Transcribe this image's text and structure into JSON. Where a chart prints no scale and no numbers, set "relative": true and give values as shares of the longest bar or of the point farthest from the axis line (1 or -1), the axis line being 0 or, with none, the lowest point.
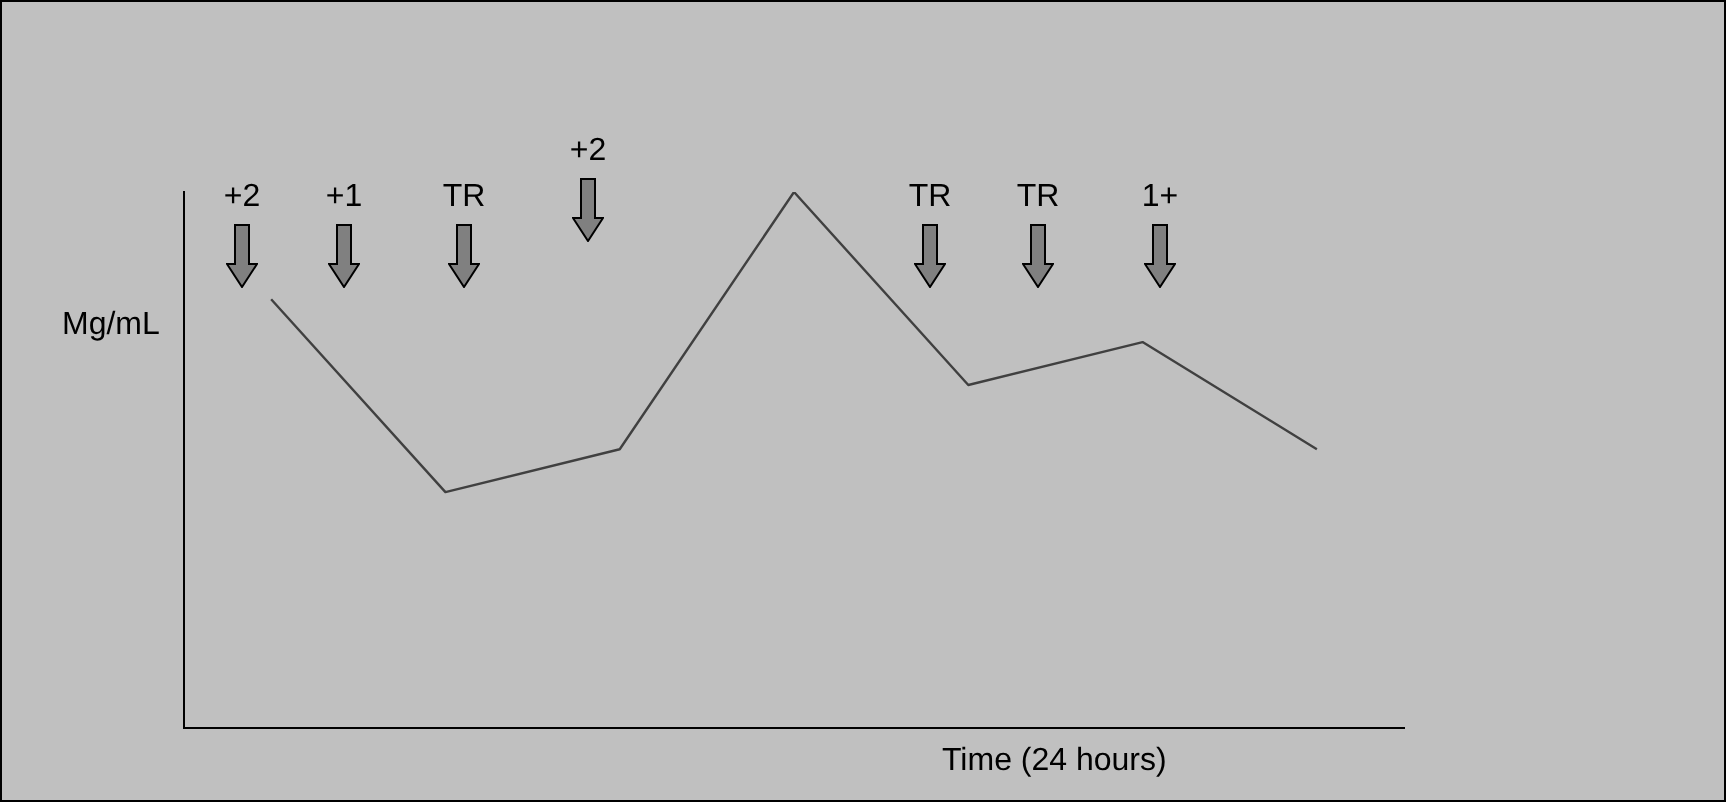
{
  "chart_data": {
    "type": "line",
    "relative": true,
    "ylabel": "Mg/mL",
    "xlabel": "Time (24 hours)",
    "categories": [
      null,
      null,
      null,
      null,
      null,
      null,
      null
    ],
    "series": [
      {
        "color": "#404040",
        "values": [
          0.8,
          0.44,
          0.52,
          1,
          0.64,
          0.72,
          0.52
        ]
      }
    ],
    "annotations": [
      "+2",
      "+1",
      "TR",
      "+2",
      "TR",
      "TR",
      "1+"
    ],
    "grid": false,
    "legend": false,
    "marker": "none",
    "line_style": "solid"
  }
}
